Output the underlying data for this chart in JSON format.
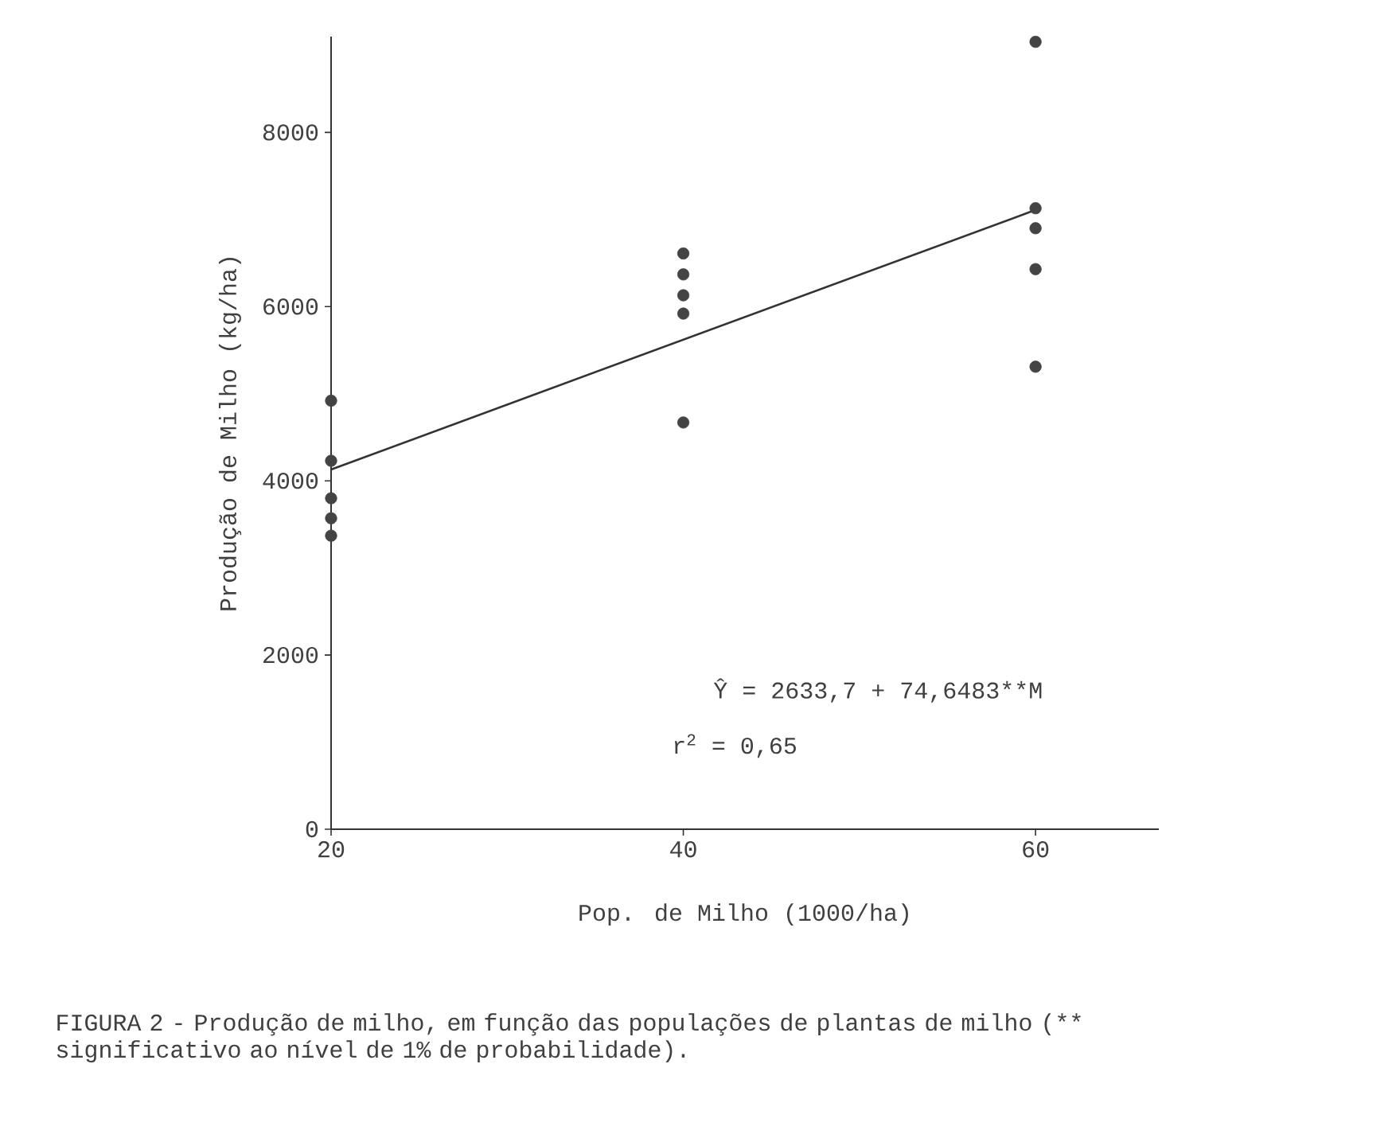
{
  "chart_data": {
    "type": "scatter",
    "xlabel": "Pop. de Milho (1000/ha)",
    "ylabel": "Produção de Milho (kg/ha)",
    "xlim": [
      20,
      67
    ],
    "xticks": [
      20,
      40,
      60
    ],
    "ylim": [
      0,
      9100
    ],
    "yticks": [
      0,
      2000,
      4000,
      6000,
      8000
    ],
    "grid": false,
    "series": [
      {
        "color": "#444444",
        "marker": "circle",
        "x": [
          20,
          20,
          20,
          20,
          20,
          40,
          40,
          40,
          40,
          40,
          60,
          60,
          60,
          60,
          60
        ],
        "values": [
          4920,
          4230,
          3800,
          3570,
          3370,
          6610,
          6370,
          6130,
          5920,
          4670,
          9040,
          7130,
          6900,
          6430,
          5310
        ]
      },
      {
        "type": "line",
        "color": "#333333",
        "marker": "none",
        "line_style": "solid",
        "x": [
          20,
          60
        ],
        "values": [
          4130,
          7110
        ]
      }
    ],
    "annotations": [
      "Ŷ = 2633,7 + 74,6483**M",
      "r$^{2}$ = 0,65",
      "FIGURA 2 - Produção de milho, em função das populações de plantas de milho (** significativo ao nível de 1% de probabilidade)."
    ]
  }
}
